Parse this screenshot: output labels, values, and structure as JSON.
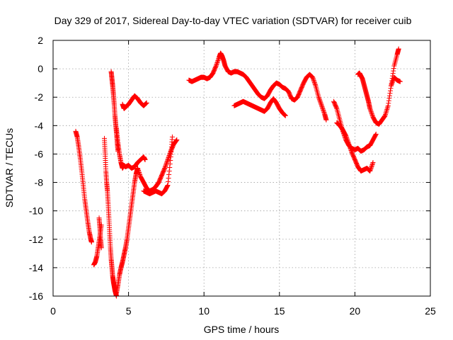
{
  "chart_data": {
    "type": "scatter",
    "title": "Day 329 of 2017, Sidereal Day-to-day VTEC variation (SDTVAR) for receiver cuib",
    "xlabel": "GPS time / hours",
    "ylabel": "SDTVAR / TECUs",
    "xlim": [
      0,
      25
    ],
    "ylim": [
      -16,
      2
    ],
    "xticks": [
      0,
      5,
      10,
      15,
      20,
      25
    ],
    "yticks": [
      2,
      0,
      -2,
      -4,
      -6,
      -8,
      -10,
      -12,
      -14,
      -16
    ],
    "grid": true,
    "marker": "plus",
    "color": "#ff0000",
    "series": [
      {
        "x": [
          1.5,
          1.6,
          1.7,
          1.8,
          1.9,
          2.0,
          2.1,
          2.2,
          2.3,
          2.4,
          2.5,
          2.55
        ],
        "y": [
          -4.4,
          -4.8,
          -5.5,
          -6.3,
          -7.2,
          -8.2,
          -9.2,
          -10.0,
          -10.8,
          -11.5,
          -12.0,
          -12.2
        ]
      },
      {
        "x": [
          2.7,
          2.8,
          2.9,
          3.0,
          3.1,
          3.2
        ],
        "y": [
          -13.8,
          -13.6,
          -13.2,
          -12.5,
          -11.8,
          -11.0
        ]
      },
      {
        "x": [
          3.05,
          3.1,
          3.15,
          3.2
        ],
        "y": [
          -10.5,
          -11.2,
          -12.0,
          -12.6
        ]
      },
      {
        "x": [
          3.4,
          3.45,
          3.5,
          3.55,
          3.6,
          3.65,
          3.7,
          3.75,
          3.8,
          3.85,
          3.9,
          3.95,
          4.0,
          4.05,
          4.1,
          4.15,
          4.2
        ],
        "y": [
          -4.9,
          -6.0,
          -7.2,
          -8.0,
          -8.6,
          -9.5,
          -10.5,
          -11.6,
          -12.6,
          -13.4,
          -14.0,
          -14.6,
          -15.0,
          -15.3,
          -15.6,
          -15.8,
          -16.0
        ]
      },
      {
        "x": [
          4.2,
          4.3,
          4.4,
          4.5,
          4.6,
          4.7,
          4.8,
          4.9,
          5.0,
          5.1,
          5.2,
          5.3,
          5.4,
          5.5,
          5.6
        ],
        "y": [
          -15.8,
          -15.2,
          -14.5,
          -14.0,
          -13.6,
          -13.1,
          -12.6,
          -12.0,
          -11.2,
          -10.4,
          -9.6,
          -8.8,
          -8.0,
          -7.4,
          -7.0
        ]
      },
      {
        "x": [
          3.85,
          3.9,
          3.95,
          4.0,
          4.05,
          4.1,
          4.15,
          4.2,
          4.25,
          4.3
        ],
        "y": [
          -0.2,
          -0.7,
          -1.2,
          -1.8,
          -2.5,
          -3.3,
          -3.9,
          -4.5,
          -5.2,
          -5.8
        ]
      },
      {
        "x": [
          4.2,
          4.3,
          4.4,
          4.5,
          4.6,
          4.7,
          4.8,
          5.0,
          5.2,
          5.4,
          5.6,
          5.8,
          6.0,
          6.1
        ],
        "y": [
          -4.2,
          -5.2,
          -6.0,
          -6.6,
          -7.0,
          -6.8,
          -6.9,
          -6.8,
          -7.0,
          -6.9,
          -6.6,
          -6.4,
          -6.2,
          -6.4
        ]
      },
      {
        "x": [
          4.6,
          4.7,
          4.8,
          4.9,
          5.0,
          5.2,
          5.4,
          5.6,
          5.8,
          6.0,
          6.2
        ],
        "y": [
          -2.5,
          -2.8,
          -2.7,
          -2.6,
          -2.5,
          -2.2,
          -1.9,
          -2.1,
          -2.4,
          -2.6,
          -2.4
        ]
      },
      {
        "x": [
          5.6,
          5.8,
          6.0,
          6.2,
          6.4,
          6.6,
          6.8,
          7.0,
          7.2,
          7.4,
          7.6,
          7.8,
          8.0,
          8.2
        ],
        "y": [
          -7.0,
          -7.6,
          -8.0,
          -8.4,
          -8.6,
          -8.5,
          -8.3,
          -8.0,
          -7.5,
          -7.0,
          -6.4,
          -5.8,
          -5.3,
          -5.0
        ]
      },
      {
        "x": [
          6.0,
          6.2,
          6.4,
          6.6,
          6.8,
          7.0,
          7.2,
          7.4,
          7.6,
          7.8,
          7.9
        ],
        "y": [
          -8.6,
          -8.7,
          -8.8,
          -8.7,
          -8.6,
          -8.7,
          -8.8,
          -8.6,
          -8.2,
          -6.2,
          -4.8
        ]
      },
      {
        "x": [
          9.0,
          9.2,
          9.4,
          9.6,
          9.8,
          10.0,
          10.2,
          10.4,
          10.6,
          10.8,
          11.0,
          11.1,
          11.2,
          11.3,
          11.4,
          11.6,
          11.8,
          12.0,
          12.2,
          12.4,
          12.6,
          12.8,
          13.0,
          13.2,
          13.4,
          13.6,
          13.8,
          14.0,
          14.2,
          14.4,
          14.6,
          14.8,
          15.0,
          15.2,
          15.4,
          15.6,
          15.8,
          16.0,
          16.2,
          16.4,
          16.6,
          16.8,
          17.0,
          17.2,
          17.4,
          17.6,
          17.8,
          18.0,
          18.1
        ],
        "y": [
          -0.8,
          -0.9,
          -0.8,
          -0.7,
          -0.6,
          -0.6,
          -0.7,
          -0.6,
          -0.3,
          0.2,
          0.8,
          1.1,
          0.9,
          0.6,
          0.2,
          -0.2,
          -0.3,
          -0.2,
          -0.2,
          -0.3,
          -0.4,
          -0.6,
          -0.9,
          -1.2,
          -1.5,
          -1.8,
          -2.0,
          -2.1,
          -1.9,
          -1.5,
          -1.2,
          -1.0,
          -1.1,
          -1.3,
          -1.4,
          -1.6,
          -2.1,
          -2.2,
          -2.0,
          -1.5,
          -1.0,
          -0.6,
          -0.4,
          -0.6,
          -1.2,
          -2.0,
          -2.6,
          -3.2,
          -3.6
        ]
      },
      {
        "x": [
          12.0,
          12.2,
          12.4,
          12.6,
          12.8,
          13.0,
          13.2,
          13.4,
          13.6,
          13.8,
          14.0,
          14.2,
          14.4,
          14.6,
          14.8,
          15.0,
          15.2,
          15.4
        ],
        "y": [
          -2.6,
          -2.5,
          -2.4,
          -2.3,
          -2.4,
          -2.5,
          -2.6,
          -2.7,
          -2.8,
          -2.9,
          -3.0,
          -2.8,
          -2.4,
          -2.1,
          -2.4,
          -2.8,
          -3.1,
          -3.3
        ]
      },
      {
        "x": [
          18.6,
          18.8,
          19.0,
          19.2,
          19.4,
          19.6,
          19.8,
          20.0,
          20.2,
          20.4,
          20.6,
          20.8,
          21.0,
          21.2,
          21.4
        ],
        "y": [
          -2.3,
          -2.8,
          -3.6,
          -4.4,
          -5.0,
          -5.4,
          -5.6,
          -5.7,
          -5.6,
          -5.8,
          -5.7,
          -5.5,
          -5.4,
          -5.0,
          -4.6
        ]
      },
      {
        "x": [
          18.8,
          19.0,
          19.2,
          19.4,
          19.6,
          19.8,
          20.0,
          20.2,
          20.4,
          20.6,
          20.8,
          21.0,
          21.2
        ],
        "y": [
          -3.8,
          -4.0,
          -4.3,
          -4.7,
          -5.3,
          -5.9,
          -6.4,
          -6.9,
          -7.2,
          -7.1,
          -7.0,
          -7.2,
          -6.6
        ]
      },
      {
        "x": [
          20.2,
          20.3,
          20.4,
          20.5,
          20.6,
          20.7,
          20.8,
          20.9,
          21.0,
          21.2,
          21.4,
          21.6,
          21.8,
          22.0,
          22.2,
          22.4,
          22.6,
          22.8,
          22.9
        ],
        "y": [
          -0.4,
          -0.3,
          -0.5,
          -0.7,
          -1.1,
          -1.5,
          -1.9,
          -2.3,
          -2.8,
          -3.4,
          -3.8,
          -3.9,
          -3.6,
          -3.3,
          -2.6,
          -1.2,
          0.2,
          1.0,
          1.4
        ]
      },
      {
        "x": [
          22.4,
          22.6,
          22.8,
          23.0
        ],
        "y": [
          -1.2,
          -0.6,
          -0.8,
          -0.9
        ]
      }
    ]
  }
}
